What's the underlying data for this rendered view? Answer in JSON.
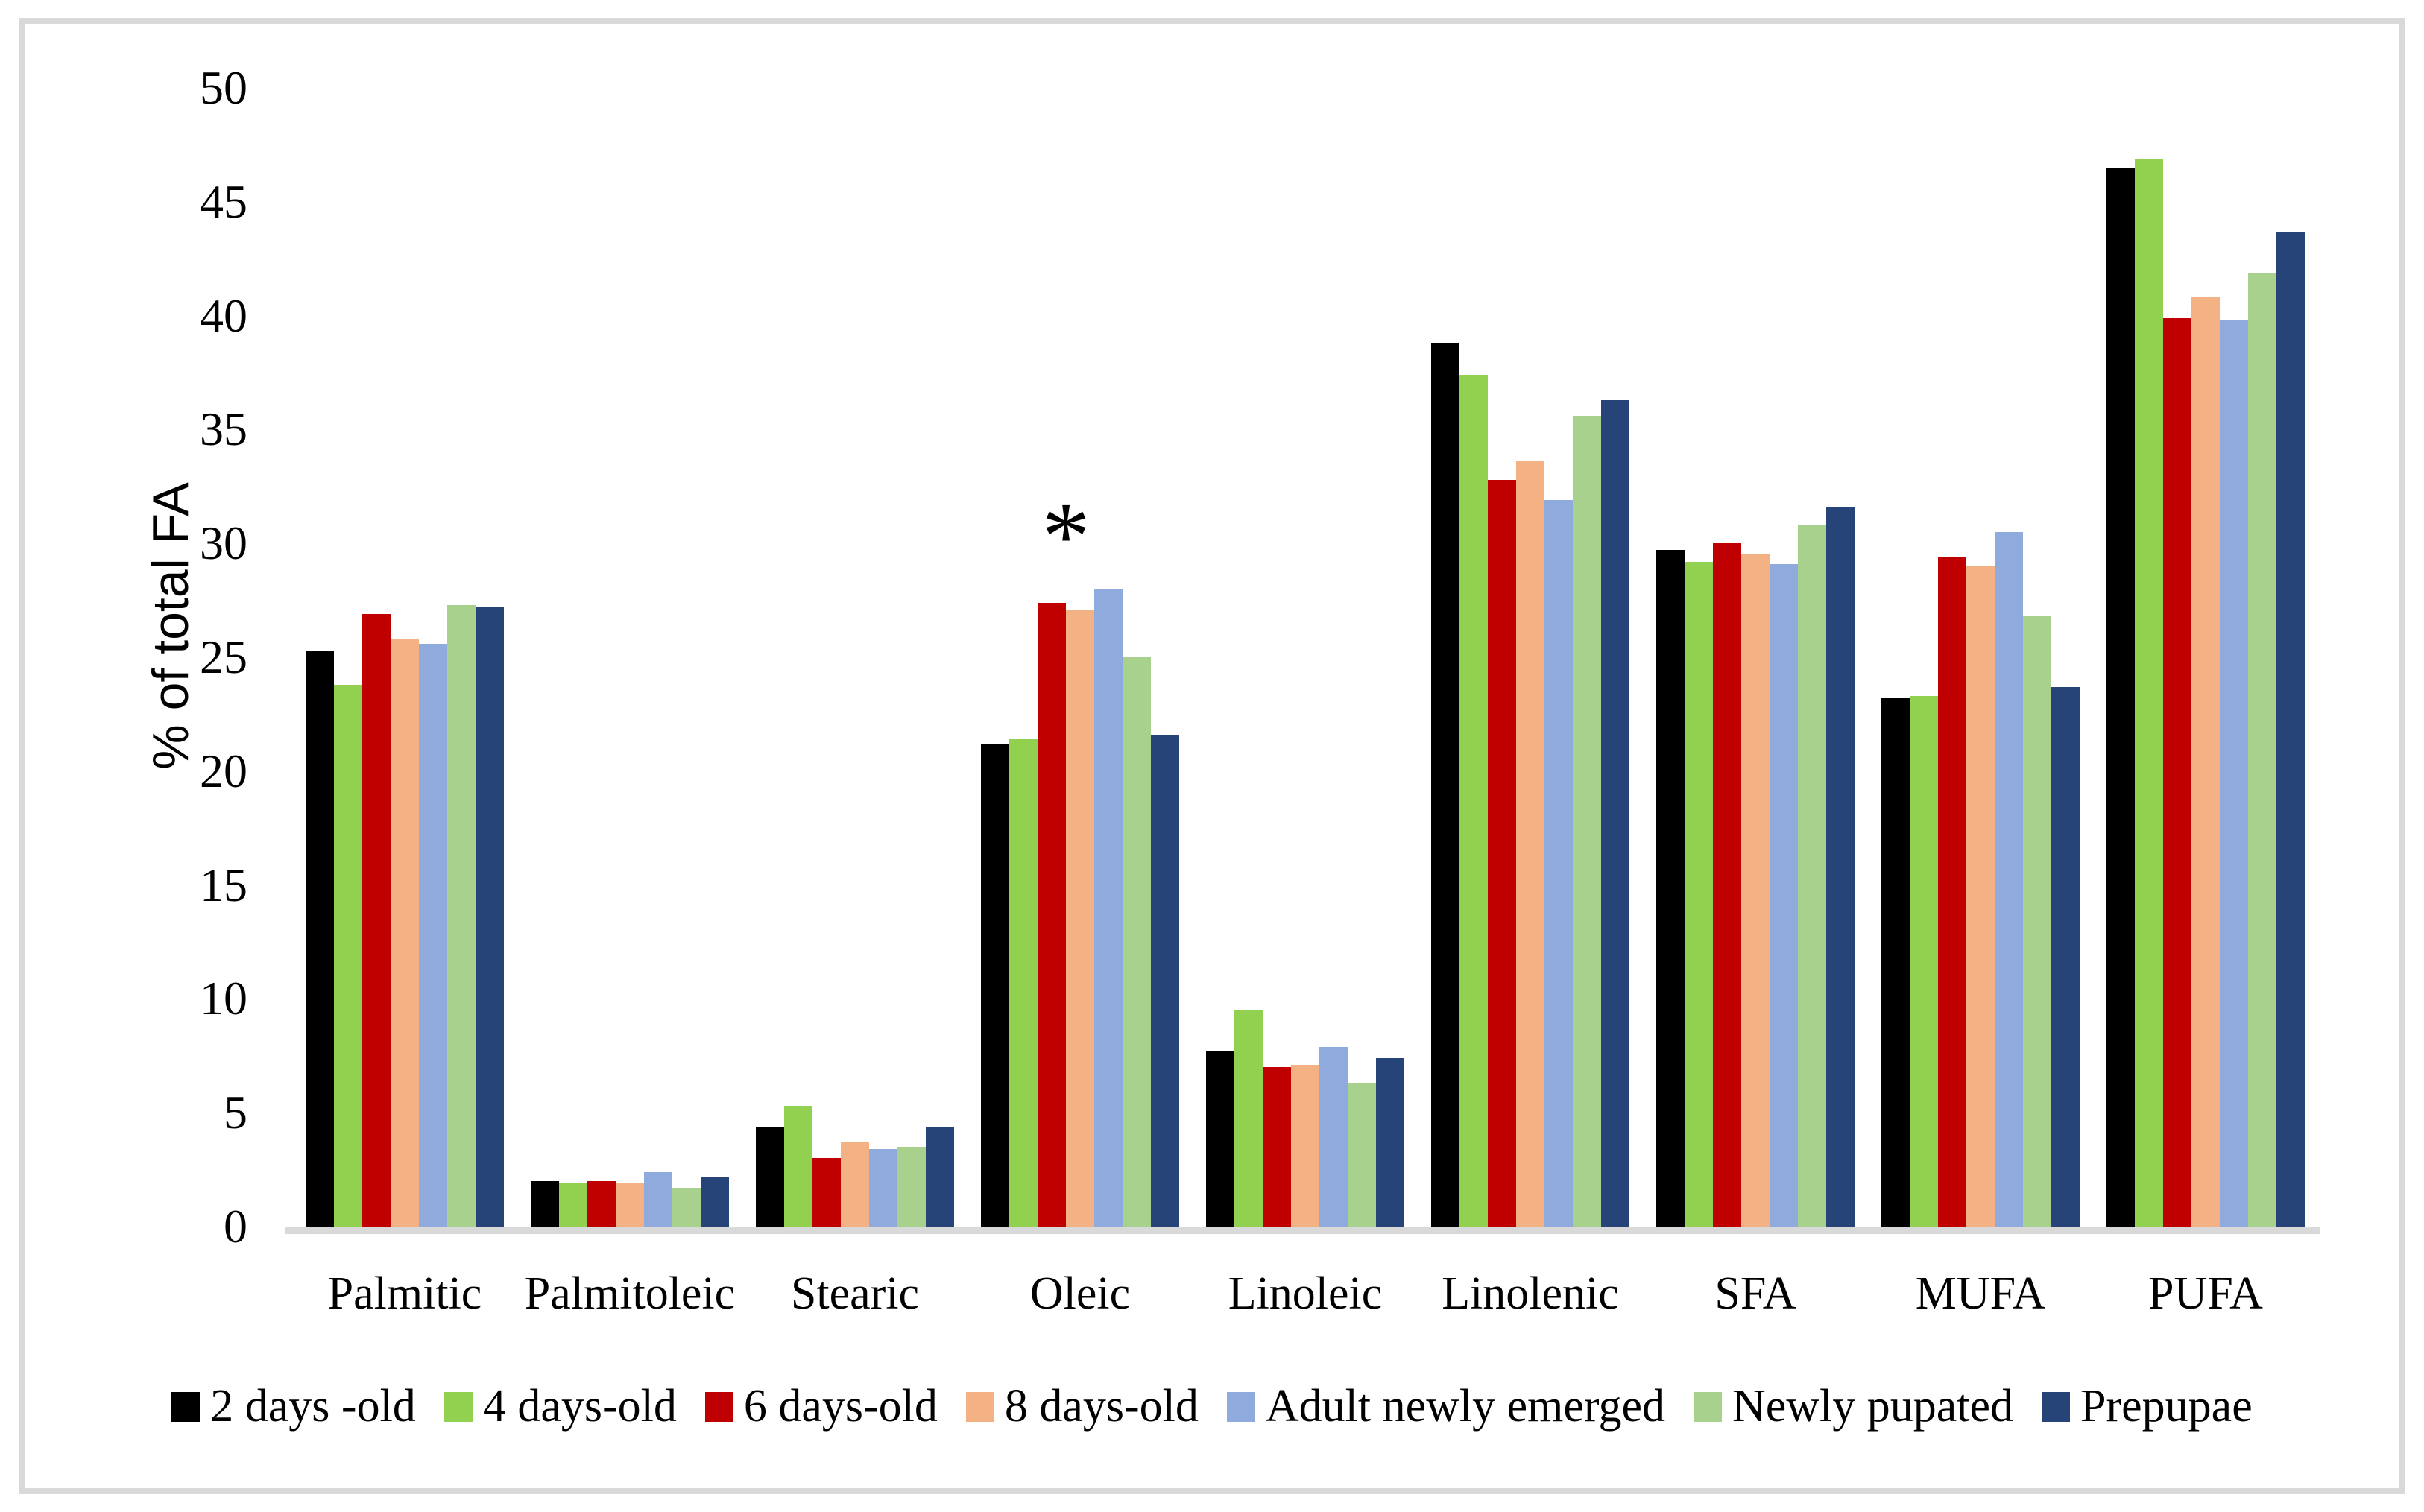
{
  "chart_data": {
    "type": "bar",
    "title": "",
    "xlabel": "",
    "ylabel": "% of total FA",
    "ylim": [
      0,
      50
    ],
    "ytick_step": 5,
    "grid": false,
    "legend_position": "bottom",
    "categories": [
      "Palmitic",
      "Palmitoleic",
      "Stearic",
      "Oleic",
      "Linoleic",
      "Linolenic",
      "SFA",
      "MUFA",
      "PUFA"
    ],
    "series": [
      {
        "name": "2 days -old",
        "color": "#000000",
        "values": [
          25.3,
          2.0,
          4.4,
          21.2,
          7.7,
          38.8,
          29.7,
          23.2,
          46.5
        ]
      },
      {
        "name": "4 days-old",
        "color": "#92D050",
        "values": [
          23.8,
          1.9,
          5.3,
          21.4,
          9.5,
          37.4,
          29.2,
          23.3,
          46.9
        ]
      },
      {
        "name": "6 days-old",
        "color": "#C00000",
        "values": [
          26.9,
          2.0,
          3.0,
          27.4,
          7.0,
          32.8,
          30.0,
          29.4,
          39.9
        ]
      },
      {
        "name": "8 days-old",
        "color": "#F4B183",
        "values": [
          25.8,
          1.9,
          3.7,
          27.1,
          7.1,
          33.6,
          29.5,
          29.0,
          40.8
        ]
      },
      {
        "name": "Adult newly emerged",
        "color": "#8FAADC",
        "values": [
          25.6,
          2.4,
          3.4,
          28.0,
          7.9,
          31.9,
          29.1,
          30.5,
          39.8
        ]
      },
      {
        "name": "Newly pupated",
        "color": "#A9D18E",
        "values": [
          27.3,
          1.7,
          3.5,
          25.0,
          6.3,
          35.6,
          30.8,
          26.8,
          41.9
        ]
      },
      {
        "name": "Prepupae",
        "color": "#264478",
        "values": [
          27.2,
          2.2,
          4.4,
          21.6,
          7.4,
          36.3,
          31.6,
          23.7,
          43.7
        ]
      }
    ],
    "annotations": [
      {
        "text": "*",
        "category": "Oleic",
        "note": "significance marker above Oleic group"
      }
    ]
  },
  "colors": {
    "frame_border": "#D9D9D9",
    "axis_line": "#D9D9D9",
    "text": "#000000"
  }
}
